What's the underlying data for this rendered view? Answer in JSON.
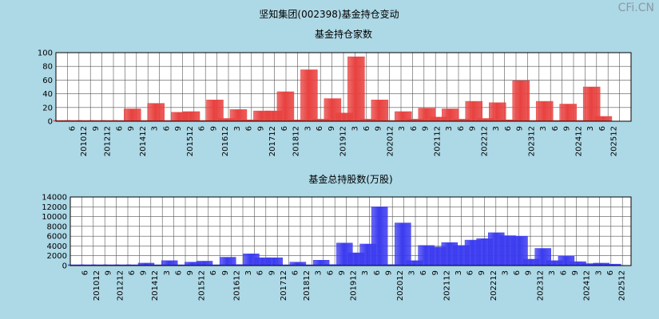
{
  "page_title": "坚知集团(002398)基金持仓变动",
  "watermark": "CFi.CN",
  "colors": {
    "background": "#add8e6",
    "plot_bg": "#ffffff",
    "grid": "#555555",
    "bar_red": "#e8413f",
    "bar_blue": "#3b3bf0"
  },
  "x_tick_labels": [
    "6",
    "201012",
    "9",
    "201212",
    "6",
    "9",
    "201412",
    "3",
    "6",
    "9",
    "201512",
    "6",
    "9",
    "201612",
    "3",
    "6",
    "9",
    "201712",
    "6",
    "201812",
    "3",
    "6",
    "9",
    "201912",
    "3",
    "6",
    "9",
    "202012",
    "3",
    "6",
    "9",
    "202112",
    "3",
    "6",
    "9",
    "202212",
    "3",
    "6",
    "9",
    "202312",
    "3",
    "6",
    "9",
    "202412",
    "3",
    "6",
    "202512"
  ],
  "chart_data": [
    {
      "type": "bar",
      "title": "基金持仓家数",
      "ylim": [
        0,
        100
      ],
      "yticks": [
        0,
        20,
        40,
        60,
        80,
        100
      ],
      "values": [
        1,
        1,
        1,
        1,
        1,
        1,
        18,
        1,
        26,
        1,
        13,
        14,
        1,
        31,
        4,
        17,
        2,
        15,
        15,
        43,
        2,
        75,
        3,
        33,
        12,
        94,
        3,
        31,
        1,
        14,
        3,
        19,
        6,
        18,
        3,
        29,
        4,
        27,
        2,
        59,
        1,
        29,
        1,
        25,
        1,
        50,
        7
      ]
    },
    {
      "type": "bar",
      "title": "基金总持股数(万股)",
      "ylim": [
        0,
        14000
      ],
      "yticks": [
        0,
        2000,
        4000,
        6000,
        8000,
        10000,
        12000,
        14000
      ],
      "values": [
        100,
        100,
        100,
        100,
        100,
        100,
        500,
        100,
        1000,
        100,
        700,
        900,
        100,
        1700,
        200,
        2400,
        1600,
        1600,
        100,
        700,
        100,
        1100,
        200,
        4600,
        2600,
        4400,
        12000,
        200,
        8700,
        1000,
        4100,
        3800,
        4700,
        4100,
        5200,
        5500,
        6700,
        6100,
        6000,
        1300,
        3500,
        1000,
        1900,
        800,
        400,
        500,
        300
      ]
    }
  ]
}
